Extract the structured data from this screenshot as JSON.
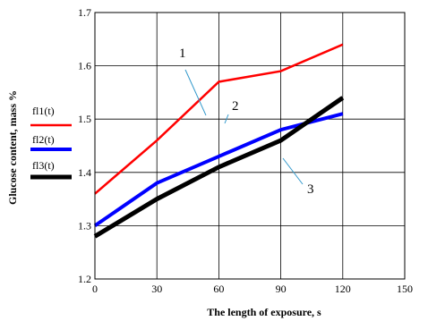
{
  "chart_data": {
    "type": "line",
    "title": "",
    "xlabel": "The length of exposure, s",
    "ylabel": "Glucose content, mass %",
    "x": [
      0,
      30,
      60,
      90,
      120
    ],
    "xlim": [
      0,
      150
    ],
    "ylim": [
      1.2,
      1.7
    ],
    "xticks": [
      "0",
      "30",
      "60",
      "90",
      "120",
      "150"
    ],
    "yticks": [
      "1.2",
      "1.3",
      "1.4",
      "1.5",
      "1.6",
      "1.7"
    ],
    "grid": true,
    "legend_placement": "left",
    "series": [
      {
        "name": "fl1(t)",
        "values": [
          1.36,
          1.46,
          1.57,
          1.59,
          1.64
        ],
        "color": "#ff0000"
      },
      {
        "name": "fl2(t)",
        "values": [
          1.3,
          1.38,
          1.43,
          1.48,
          1.51
        ],
        "color": "#0000ff"
      },
      {
        "name": "fl3(t)",
        "values": [
          1.28,
          1.35,
          1.41,
          1.46,
          1.54
        ],
        "color": "#000000"
      }
    ],
    "annotations": [
      {
        "text": "1",
        "target_series": 0
      },
      {
        "text": "2",
        "target_series": 1
      },
      {
        "text": "3",
        "target_series": 2
      }
    ]
  }
}
